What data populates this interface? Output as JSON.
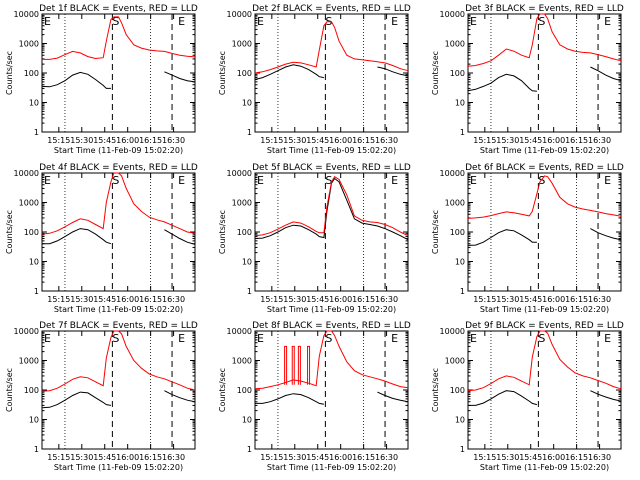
{
  "figure": {
    "x_tick_labels": [
      "15:15",
      "15:30",
      "15:45",
      "16:00",
      "16:15",
      "16:30"
    ],
    "x_label": "Start Time (11-Feb-09 15:02:20)",
    "y_label": "Counts/sec",
    "y_tick_labels": [
      "1",
      "10",
      "100",
      "1000",
      "10000"
    ],
    "marker_labels": {
      "start": "S",
      "end": "E",
      "edge": "E"
    },
    "colors": {
      "events": "#000000",
      "lld": "#ff0000"
    }
  },
  "chart_data": [
    {
      "type": "line",
      "title": "Det 1f BLACK = Events, RED = LLD",
      "xlabel": "Start Time (11-Feb-09 15:02:20)",
      "ylabel": "Counts/sec",
      "y_scale": "log",
      "ylim": [
        1,
        10000
      ],
      "x_ticks": [
        "15:15",
        "15:30",
        "15:45",
        "16:00",
        "16:15",
        "16:30"
      ],
      "x_minutes": [
        0,
        5,
        10,
        15,
        20,
        25,
        30,
        35,
        40,
        42,
        45,
        47,
        50,
        52,
        55,
        60,
        65,
        70,
        75,
        80,
        85,
        90,
        95,
        100
      ],
      "series": [
        {
          "name": "Events",
          "color": "#000000",
          "values": [
            35,
            34,
            40,
            55,
            85,
            105,
            90,
            60,
            38,
            30,
            30,
            null,
            null,
            null,
            null,
            null,
            null,
            null,
            null,
            110,
            85,
            65,
            55,
            50
          ]
        },
        {
          "name": "LLD",
          "color": "#ff0000",
          "values": [
            290,
            290,
            320,
            420,
            540,
            480,
            360,
            310,
            330,
            1200,
            6500,
            8000,
            8000,
            5000,
            2000,
            900,
            700,
            600,
            560,
            540,
            460,
            400,
            370,
            350
          ]
        }
      ],
      "vlines_dotted": [
        15,
        71,
        100
      ],
      "vlines_dashed": [
        46,
        85
      ],
      "markers": {
        "S": 46,
        "E": 89,
        "left_E": 0
      }
    },
    {
      "type": "line",
      "title": "Det 2f BLACK = Events, RED = LLD",
      "xlabel": "Start Time (11-Feb-09 15:02:20)",
      "ylabel": "Counts/sec",
      "y_scale": "log",
      "ylim": [
        1,
        10000
      ],
      "x_ticks": [
        "15:15",
        "15:30",
        "15:45",
        "16:00",
        "16:15",
        "16:30"
      ],
      "x_minutes": [
        0,
        5,
        10,
        15,
        20,
        25,
        30,
        35,
        40,
        42,
        45,
        47,
        50,
        52,
        55,
        60,
        65,
        70,
        75,
        80,
        85,
        90,
        95,
        100
      ],
      "series": [
        {
          "name": "Events",
          "color": "#000000",
          "values": [
            60,
            70,
            90,
            120,
            160,
            190,
            170,
            130,
            90,
            75,
            70,
            null,
            null,
            null,
            null,
            null,
            null,
            null,
            null,
            160,
            140,
            110,
            90,
            80
          ]
        },
        {
          "name": "LLD",
          "color": "#ff0000",
          "values": [
            100,
            110,
            130,
            160,
            200,
            230,
            220,
            190,
            160,
            600,
            4000,
            5500,
            5500,
            3500,
            1200,
            400,
            300,
            280,
            260,
            240,
            220,
            180,
            140,
            120
          ]
        }
      ],
      "vlines_dotted": [
        15,
        71,
        100
      ],
      "vlines_dashed": [
        46,
        85
      ],
      "markers": {
        "S": 46,
        "E": 89,
        "left_E": 0
      }
    },
    {
      "type": "line",
      "title": "Det 3f BLACK = Events, RED = LLD",
      "xlabel": "Start Time (11-Feb-09 15:02:20)",
      "ylabel": "Counts/sec",
      "y_scale": "log",
      "ylim": [
        1,
        10000
      ],
      "x_ticks": [
        "15:15",
        "15:30",
        "15:45",
        "16:00",
        "16:15",
        "16:30"
      ],
      "x_minutes": [
        0,
        5,
        10,
        15,
        20,
        25,
        30,
        35,
        40,
        42,
        45,
        47,
        50,
        52,
        55,
        60,
        65,
        70,
        75,
        80,
        85,
        90,
        95,
        100
      ],
      "series": [
        {
          "name": "Events",
          "color": "#000000",
          "values": [
            25,
            28,
            35,
            45,
            70,
            90,
            80,
            55,
            30,
            25,
            24,
            null,
            null,
            null,
            null,
            null,
            null,
            null,
            null,
            160,
            120,
            85,
            65,
            55
          ]
        },
        {
          "name": "LLD",
          "color": "#ff0000",
          "values": [
            170,
            180,
            210,
            260,
            400,
            650,
            550,
            400,
            330,
            900,
            7000,
            10000,
            10000,
            7000,
            2500,
            900,
            650,
            550,
            500,
            480,
            420,
            360,
            300,
            260
          ]
        }
      ],
      "vlines_dotted": [
        15,
        71,
        100
      ],
      "vlines_dashed": [
        46,
        85
      ],
      "markers": {
        "S": 46,
        "E": 89,
        "left_E": 0
      }
    },
    {
      "type": "line",
      "title": "Det 4f BLACK = Events, RED = LLD",
      "xlabel": "Start Time (11-Feb-09 15:02:20)",
      "ylabel": "Counts/sec",
      "y_scale": "log",
      "ylim": [
        1,
        10000
      ],
      "x_ticks": [
        "15:15",
        "15:30",
        "15:45",
        "16:00",
        "16:15",
        "16:30"
      ],
      "x_minutes": [
        0,
        5,
        10,
        15,
        20,
        25,
        30,
        35,
        40,
        42,
        45,
        47,
        50,
        52,
        55,
        60,
        65,
        70,
        75,
        80,
        85,
        90,
        95,
        100
      ],
      "series": [
        {
          "name": "Events",
          "color": "#000000",
          "values": [
            40,
            40,
            50,
            70,
            100,
            130,
            120,
            85,
            55,
            45,
            40,
            null,
            null,
            null,
            null,
            null,
            null,
            null,
            null,
            120,
            85,
            60,
            45,
            38
          ]
        },
        {
          "name": "LLD",
          "color": "#ff0000",
          "values": [
            85,
            90,
            110,
            150,
            210,
            280,
            250,
            180,
            130,
            1000,
            5000,
            10000,
            10000,
            8000,
            3000,
            900,
            500,
            320,
            260,
            220,
            170,
            130,
            100,
            90
          ]
        }
      ],
      "vlines_dotted": [
        15,
        71,
        100
      ],
      "vlines_dashed": [
        46,
        85
      ],
      "markers": {
        "S": 46,
        "E": 89,
        "left_E": 0
      }
    },
    {
      "type": "line",
      "title": "Det 5f BLACK = Events, RED = LLD",
      "xlabel": "Start Time (11-Feb-09 15:02:20)",
      "ylabel": "Counts/sec",
      "y_scale": "log",
      "ylim": [
        1,
        10000
      ],
      "x_ticks": [
        "15:15",
        "15:30",
        "15:45",
        "16:00",
        "16:15",
        "16:30"
      ],
      "x_minutes": [
        0,
        5,
        10,
        15,
        20,
        25,
        30,
        35,
        40,
        42,
        45,
        47,
        50,
        52,
        55,
        60,
        65,
        70,
        75,
        80,
        85,
        90,
        95,
        100
      ],
      "series": [
        {
          "name": "Events",
          "color": "#000000",
          "values": [
            60,
            62,
            75,
            100,
            140,
            170,
            160,
            120,
            85,
            70,
            65,
            500,
            4500,
            6500,
            5000,
            1200,
            280,
            200,
            180,
            160,
            130,
            100,
            75,
            55
          ]
        },
        {
          "name": "LLD",
          "color": "#ff0000",
          "values": [
            75,
            80,
            95,
            125,
            170,
            220,
            200,
            150,
            105,
            95,
            95,
            700,
            5000,
            7500,
            6000,
            1800,
            350,
            250,
            220,
            210,
            180,
            140,
            100,
            75
          ]
        }
      ],
      "vlines_dotted": [
        15,
        71,
        100
      ],
      "vlines_dashed": [
        46,
        85
      ],
      "markers": {
        "S": 46,
        "E": 89,
        "left_E": 0
      }
    },
    {
      "type": "line",
      "title": "Det 6f BLACK = Events, RED = LLD",
      "xlabel": "Start Time (11-Feb-09 15:02:20)",
      "ylabel": "Counts/sec",
      "y_scale": "log",
      "ylim": [
        1,
        10000
      ],
      "x_ticks": [
        "15:15",
        "15:30",
        "15:45",
        "16:00",
        "16:15",
        "16:30"
      ],
      "x_minutes": [
        0,
        5,
        10,
        15,
        20,
        25,
        30,
        35,
        40,
        42,
        45,
        47,
        50,
        52,
        55,
        60,
        65,
        70,
        75,
        80,
        85,
        90,
        95,
        100
      ],
      "series": [
        {
          "name": "Events",
          "color": "#000000",
          "values": [
            35,
            36,
            45,
            65,
            95,
            120,
            110,
            80,
            55,
            45,
            45,
            null,
            null,
            null,
            null,
            null,
            null,
            null,
            null,
            130,
            95,
            75,
            62,
            55
          ]
        },
        {
          "name": "LLD",
          "color": "#ff0000",
          "values": [
            290,
            300,
            320,
            360,
            420,
            480,
            450,
            400,
            350,
            500,
            2000,
            5000,
            8000,
            7500,
            4500,
            1500,
            900,
            700,
            600,
            540,
            480,
            420,
            380,
            340
          ]
        }
      ],
      "vlines_dotted": [
        15,
        71,
        100
      ],
      "vlines_dashed": [
        46,
        85
      ],
      "markers": {
        "S": 46,
        "E": 89,
        "left_E": 0
      }
    },
    {
      "type": "line",
      "title": "Det 7f BLACK = Events, RED = LLD",
      "xlabel": "Start Time (11-Feb-09 15:02:20)",
      "ylabel": "Counts/sec",
      "y_scale": "log",
      "ylim": [
        1,
        10000
      ],
      "x_ticks": [
        "15:15",
        "15:30",
        "15:45",
        "16:00",
        "16:15",
        "16:30"
      ],
      "x_minutes": [
        0,
        5,
        10,
        15,
        20,
        25,
        30,
        35,
        40,
        42,
        45,
        47,
        50,
        52,
        55,
        60,
        65,
        70,
        75,
        80,
        85,
        90,
        95,
        100
      ],
      "series": [
        {
          "name": "Events",
          "color": "#000000",
          "values": [
            25,
            26,
            32,
            45,
            65,
            85,
            80,
            55,
            38,
            32,
            30,
            null,
            null,
            null,
            null,
            null,
            null,
            null,
            null,
            95,
            70,
            55,
            45,
            40
          ]
        },
        {
          "name": "LLD",
          "color": "#ff0000",
          "values": [
            90,
            95,
            115,
            160,
            230,
            280,
            260,
            190,
            140,
            1200,
            6000,
            10000,
            10000,
            8000,
            3000,
            1000,
            550,
            350,
            280,
            240,
            190,
            150,
            115,
            100
          ]
        }
      ],
      "vlines_dotted": [
        15,
        71,
        100
      ],
      "vlines_dashed": [
        46,
        85
      ],
      "markers": {
        "S": 46,
        "E": 89,
        "left_E": 0
      }
    },
    {
      "type": "line",
      "title": "Det 8f BLACK = Events, RED = LLD",
      "xlabel": "Start Time (11-Feb-09 15:02:20)",
      "ylabel": "Counts/sec",
      "y_scale": "log",
      "ylim": [
        1,
        10000
      ],
      "x_ticks": [
        "15:15",
        "15:30",
        "15:45",
        "16:00",
        "16:15",
        "16:30"
      ],
      "x_minutes": [
        0,
        5,
        10,
        15,
        20,
        25,
        30,
        35,
        40,
        42,
        45,
        47,
        50,
        52,
        55,
        60,
        65,
        70,
        75,
        80,
        85,
        90,
        95,
        100
      ],
      "series": [
        {
          "name": "Events",
          "color": "#000000",
          "values": [
            35,
            35,
            40,
            50,
            65,
            75,
            70,
            55,
            40,
            35,
            33,
            null,
            null,
            null,
            null,
            null,
            null,
            null,
            null,
            85,
            65,
            52,
            45,
            40
          ]
        },
        {
          "name": "LLD",
          "color": "#ff0000",
          "values": [
            110,
            115,
            130,
            150,
            180,
            220,
            200,
            170,
            140,
            1400,
            7000,
            10000,
            10000,
            7000,
            3000,
            900,
            450,
            330,
            280,
            240,
            200,
            160,
            130,
            120
          ]
        }
      ],
      "spikes": [
        20,
        25,
        29,
        35
      ],
      "vlines_dotted": [
        15,
        71,
        100
      ],
      "vlines_dashed": [
        46,
        85
      ],
      "markers": {
        "S": 46,
        "E": 89,
        "left_E": 0
      }
    },
    {
      "type": "line",
      "title": "Det 9f BLACK = Events, RED = LLD",
      "xlabel": "Start Time (11-Feb-09 15:02:20)",
      "ylabel": "Counts/sec",
      "y_scale": "log",
      "ylim": [
        1,
        10000
      ],
      "x_ticks": [
        "15:15",
        "15:30",
        "15:45",
        "16:00",
        "16:15",
        "16:30"
      ],
      "x_minutes": [
        0,
        5,
        10,
        15,
        20,
        25,
        30,
        35,
        40,
        42,
        45,
        47,
        50,
        52,
        55,
        60,
        65,
        70,
        75,
        80,
        85,
        90,
        95,
        100
      ],
      "series": [
        {
          "name": "Events",
          "color": "#000000",
          "values": [
            30,
            30,
            36,
            50,
            72,
            95,
            88,
            62,
            42,
            35,
            32,
            null,
            null,
            null,
            null,
            null,
            null,
            null,
            null,
            95,
            72,
            58,
            48,
            42
          ]
        },
        {
          "name": "LLD",
          "color": "#ff0000",
          "values": [
            95,
            100,
            120,
            165,
            240,
            300,
            270,
            200,
            150,
            1300,
            6500,
            10000,
            10000,
            8500,
            3500,
            1100,
            600,
            380,
            300,
            260,
            210,
            170,
            130,
            110
          ]
        }
      ],
      "vlines_dotted": [
        15,
        71,
        100
      ],
      "vlines_dashed": [
        46,
        85
      ],
      "markers": {
        "S": 46,
        "E": 89,
        "left_E": 0
      }
    }
  ]
}
